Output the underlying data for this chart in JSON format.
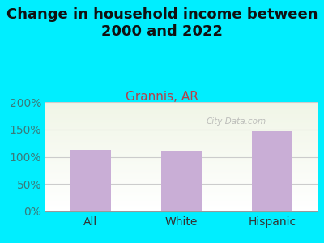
{
  "title": "Change in household income between\n2000 and 2022",
  "subtitle": "Grannis, AR",
  "categories": [
    "All",
    "White",
    "Hispanic"
  ],
  "values": [
    112,
    109,
    146
  ],
  "bar_color": "#c9aed6",
  "title_fontsize": 13,
  "subtitle_fontsize": 11,
  "subtitle_color": "#b5404a",
  "tick_label_fontsize": 10,
  "ylim": [
    0,
    200
  ],
  "yticks": [
    0,
    50,
    100,
    150,
    200
  ],
  "ytick_labels": [
    "0%",
    "50%",
    "100%",
    "150%",
    "200%"
  ],
  "background_outer": "#00eeff",
  "watermark": "City-Data.com",
  "bar_width": 0.45,
  "grid_color": "#cccccc",
  "ytick_color": "#3a7a7a"
}
